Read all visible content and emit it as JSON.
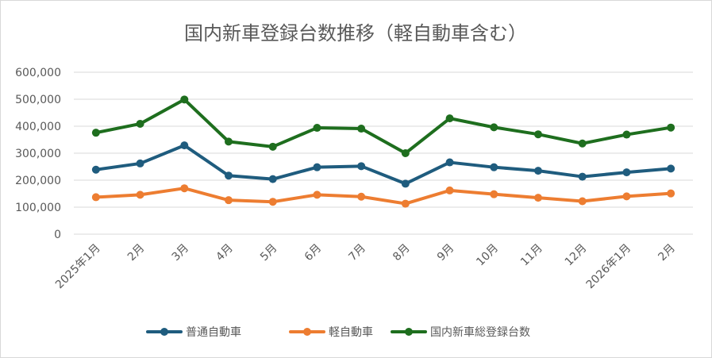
{
  "chart_data": {
    "type": "line",
    "title": "国内新車登録台数推移（軽自動車含む）",
    "xlabel": "",
    "ylabel": "",
    "categories": [
      "2025年1月",
      "2月",
      "3月",
      "4月",
      "5月",
      "6月",
      "7月",
      "8月",
      "9月",
      "10月",
      "11月",
      "12月",
      "2026年1月",
      "2月"
    ],
    "y_tick_labels": [
      "0",
      "100,000",
      "200,000",
      "300,000",
      "400,000",
      "500,000",
      "600,000"
    ],
    "ylim": [
      0,
      600000
    ],
    "grid": true,
    "legend_position": "bottom",
    "series": [
      {
        "name": "普通自動車",
        "color": "#1f5c7e",
        "values": [
          239000,
          262000,
          329000,
          217000,
          204000,
          248000,
          252000,
          187000,
          266000,
          248000,
          235000,
          213000,
          229000,
          243000
        ]
      },
      {
        "name": "軽自動車",
        "color": "#ed7d31",
        "values": [
          137000,
          146000,
          170000,
          126000,
          120000,
          146000,
          139000,
          113000,
          162000,
          148000,
          135000,
          122000,
          140000,
          151000
        ]
      },
      {
        "name": "国内新車総登録台数",
        "color": "#1e6e1e",
        "values": [
          376000,
          409000,
          499000,
          343000,
          324000,
          394000,
          391000,
          300000,
          429000,
          396000,
          370000,
          336000,
          369000,
          395000
        ]
      }
    ]
  }
}
